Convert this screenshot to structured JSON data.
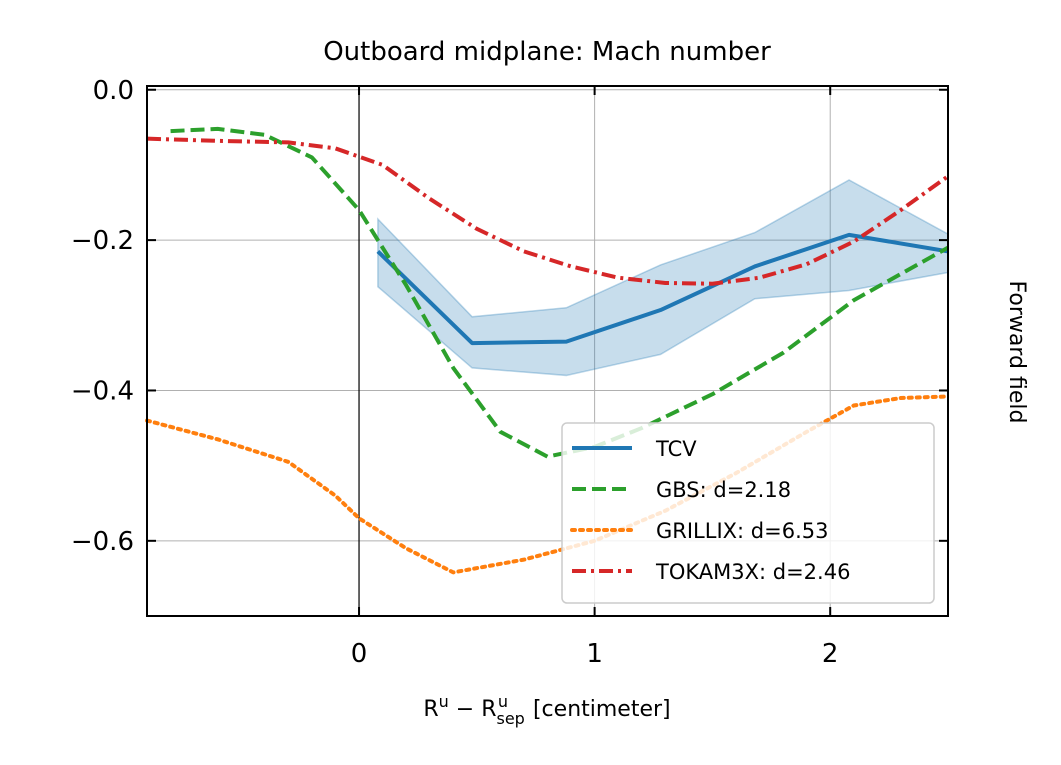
{
  "chart_data": {
    "type": "line",
    "title": "Outboard midplane: Mach number",
    "xlabel": {
      "base": "R",
      "sup1": "u",
      "minus": " − ",
      "base2": "R",
      "sub": "sep",
      "sup2": "u",
      "unit": " [centimeter]"
    },
    "right_label": "Forward field",
    "xlim": [
      -0.9,
      2.5
    ],
    "ylim": [
      -0.7,
      0.005
    ],
    "xticks": [
      0,
      1,
      2
    ],
    "xtick_labels": [
      "0",
      "1",
      "2"
    ],
    "yticks": [
      0.0,
      -0.2,
      -0.4,
      -0.6
    ],
    "ytick_labels": [
      "0.0",
      "−0.2",
      "−0.4",
      "−0.6"
    ],
    "grid": true,
    "legend_position": "bottom-right",
    "series": [
      {
        "name": "TCV",
        "color": "#1f77b4",
        "style": "solid",
        "x": [
          0.08,
          0.48,
          0.88,
          1.28,
          1.68,
          2.08,
          2.5
        ],
        "y": [
          -0.215,
          -0.337,
          -0.335,
          -0.293,
          -0.235,
          -0.193,
          -0.215
        ],
        "band_upper": [
          -0.172,
          -0.302,
          -0.29,
          -0.233,
          -0.19,
          -0.12,
          -0.192
        ],
        "band_lower": [
          -0.262,
          -0.37,
          -0.38,
          -0.352,
          -0.278,
          -0.267,
          -0.243
        ]
      },
      {
        "name": "GBS: d=2.18",
        "color": "#2ca02c",
        "style": "dashed",
        "x": [
          -0.8,
          -0.6,
          -0.4,
          -0.2,
          0.0,
          0.2,
          0.4,
          0.6,
          0.8,
          1.0,
          1.2,
          1.5,
          1.8,
          2.1,
          2.5
        ],
        "y": [
          -0.055,
          -0.052,
          -0.06,
          -0.09,
          -0.16,
          -0.26,
          -0.37,
          -0.455,
          -0.488,
          -0.475,
          -0.45,
          -0.405,
          -0.35,
          -0.28,
          -0.21
        ]
      },
      {
        "name": "GRILLIX: d=6.53",
        "color": "#ff7f0e",
        "style": "dotted",
        "x": [
          -0.9,
          -0.6,
          -0.3,
          -0.1,
          0.0,
          0.2,
          0.4,
          0.7,
          1.0,
          1.3,
          1.6,
          1.9,
          2.1,
          2.3,
          2.5
        ],
        "y": [
          -0.44,
          -0.465,
          -0.495,
          -0.54,
          -0.57,
          -0.61,
          -0.642,
          -0.625,
          -0.6,
          -0.56,
          -0.51,
          -0.455,
          -0.42,
          -0.41,
          -0.408
        ]
      },
      {
        "name": "TOKAM3X: d=2.46",
        "color": "#d62728",
        "style": "dashdot",
        "x": [
          -0.9,
          -0.6,
          -0.3,
          -0.1,
          0.1,
          0.3,
          0.5,
          0.7,
          0.9,
          1.1,
          1.3,
          1.5,
          1.7,
          1.9,
          2.1,
          2.3,
          2.5
        ],
        "y": [
          -0.065,
          -0.068,
          -0.07,
          -0.078,
          -0.1,
          -0.145,
          -0.185,
          -0.215,
          -0.235,
          -0.25,
          -0.257,
          -0.258,
          -0.25,
          -0.232,
          -0.202,
          -0.16,
          -0.115
        ]
      }
    ]
  }
}
